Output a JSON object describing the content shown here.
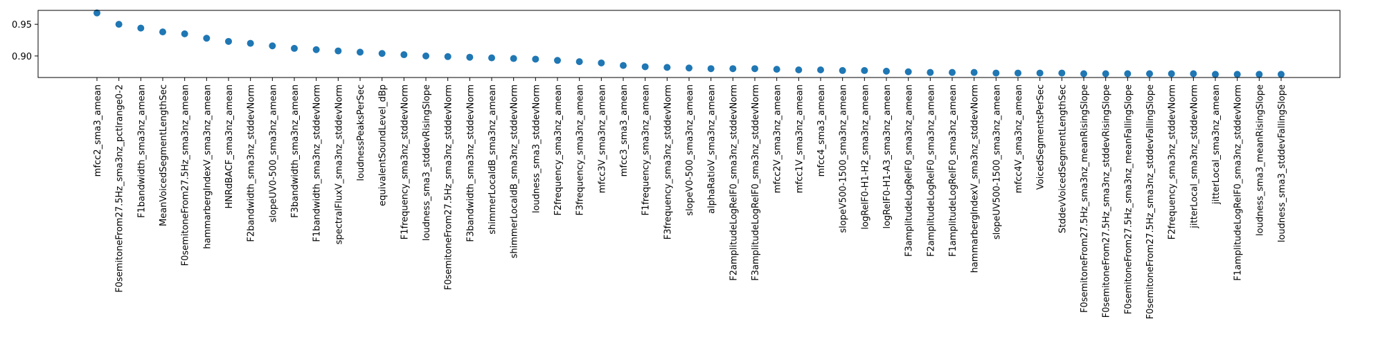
{
  "chart_data": {
    "type": "scatter",
    "title": "",
    "xlabel": "",
    "ylabel": "",
    "ylim": [
      0.866,
      0.972
    ],
    "yticks": [
      0.9,
      0.95
    ],
    "ytick_labels": [
      "0.90",
      "0.95"
    ],
    "grid": false,
    "marker_color": "#1f77b4",
    "categories": [
      "mfcc2_sma3_amean",
      "F0semitoneFrom27.5Hz_sma3nz_pctlrange0-2",
      "F1bandwidth_sma3nz_amean",
      "MeanVoicedSegmentLengthSec",
      "F0semitoneFrom27.5Hz_sma3nz_amean",
      "hammarbergIndexV_sma3nz_amean",
      "HNRdBACF_sma3nz_amean",
      "F2bandwidth_sma3nz_stddevNorm",
      "slopeUV0-500_sma3nz_amean",
      "F3bandwidth_sma3nz_amean",
      "F1bandwidth_sma3nz_stddevNorm",
      "spectralFluxV_sma3nz_stddevNorm",
      "loudnessPeaksPerSec",
      "equivalentSoundLevel_dBp",
      "F1frequency_sma3nz_stddevNorm",
      "loudness_sma3_stddevRisingSlope",
      "F0semitoneFrom27.5Hz_sma3nz_stddevNorm",
      "F3bandwidth_sma3nz_stddevNorm",
      "shimmerLocaldB_sma3nz_amean",
      "shimmerLocaldB_sma3nz_stddevNorm",
      "loudness_sma3_stddevNorm",
      "F2frequency_sma3nz_amean",
      "F3frequency_sma3nz_amean",
      "mfcc3V_sma3nz_amean",
      "mfcc3_sma3_amean",
      "F1frequency_sma3nz_amean",
      "F3frequency_sma3nz_stddevNorm",
      "slopeV0-500_sma3nz_amean",
      "alphaRatioV_sma3nz_amean",
      "F2amplitudeLogRelF0_sma3nz_stddevNorm",
      "F3amplitudeLogRelF0_sma3nz_stddevNorm",
      "mfcc2V_sma3nz_amean",
      "mfcc1V_sma3nz_amean",
      "mfcc4_sma3_amean",
      "slopeV500-1500_sma3nz_amean",
      "logRelF0-H1-H2_sma3nz_amean",
      "logRelF0-H1-A3_sma3nz_amean",
      "F3amplitudeLogRelF0_sma3nz_amean",
      "F2amplitudeLogRelF0_sma3nz_amean",
      "F1amplitudeLogRelF0_sma3nz_amean",
      "hammarbergIndexV_sma3nz_stddevNorm",
      "slopeUV500-1500_sma3nz_amean",
      "mfcc4V_sma3nz_amean",
      "VoicedSegmentsPerSec",
      "StddevVoicedSegmentLengthSec",
      "F0semitoneFrom27.5Hz_sma3nz_meanRisingSlope",
      "F0semitoneFrom27.5Hz_sma3nz_stddevRisingSlope",
      "F0semitoneFrom27.5Hz_sma3nz_meanFallingSlope",
      "F0semitoneFrom27.5Hz_sma3nz_stddevFallingSlope",
      "F2frequency_sma3nz_stddevNorm",
      "jitterLocal_sma3nz_stddevNorm",
      "jitterLocal_sma3nz_amean",
      "F1amplitudeLogRelF0_sma3nz_stddevNorm",
      "loudness_sma3_meanRisingSlope",
      "loudness_sma3_stddevFallingSlope"
    ],
    "values": [
      0.968,
      0.95,
      0.944,
      0.938,
      0.935,
      0.928,
      0.923,
      0.92,
      0.916,
      0.912,
      0.91,
      0.908,
      0.906,
      0.904,
      0.902,
      0.9,
      0.899,
      0.898,
      0.897,
      0.896,
      0.895,
      0.893,
      0.891,
      0.889,
      0.885,
      0.883,
      0.882,
      0.881,
      0.88,
      0.88,
      0.88,
      0.879,
      0.878,
      0.878,
      0.877,
      0.877,
      0.876,
      0.875,
      0.874,
      0.874,
      0.874,
      0.873,
      0.873,
      0.873,
      0.873,
      0.872,
      0.872,
      0.872,
      0.872,
      0.872,
      0.872,
      0.871,
      0.871,
      0.871,
      0.871
    ]
  }
}
